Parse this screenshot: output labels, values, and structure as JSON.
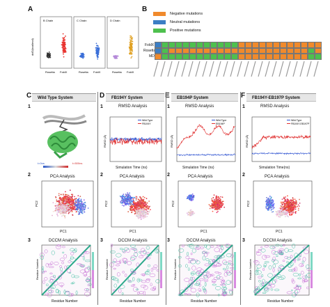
{
  "panel_letters": {
    "A": "A",
    "B": "B",
    "C": "C",
    "D": "D",
    "E": "E",
    "F": "F"
  },
  "panelA": {
    "ylabel": "ddG(kcal/mol)",
    "groups": [
      {
        "title": "B Chain",
        "xlabels": [
          "Rosetta",
          "FoldX"
        ]
      },
      {
        "title": "C Chain",
        "xlabels": [
          "Rosetta",
          "FoldX"
        ]
      },
      {
        "title": "D Chain",
        "xlabels": [
          "Rosetta",
          "FoldX"
        ]
      }
    ],
    "colors": {
      "rosetta_b": "#333333",
      "foldx_b": "#e8322e",
      "rosetta_c": "#3b6fd8",
      "foldx_c": "#3b6fd8",
      "rosetta_d": "#b58ad9",
      "foldx_d": "#e0a020"
    }
  },
  "panelB": {
    "legend": [
      {
        "label": "Negative mutations",
        "color": "#f08a2c"
      },
      {
        "label": "Neutral mutations",
        "color": "#3b7ec4"
      },
      {
        "label": "Positive mutations",
        "color": "#4ec04e"
      }
    ],
    "row_labels": [
      "FoldX",
      "Rosetta",
      "MD"
    ]
  },
  "sections": [
    {
      "key": "C",
      "title": "Wild Type System"
    },
    {
      "key": "D",
      "title": "FB194Y System"
    },
    {
      "key": "E",
      "title": "EB194P System"
    },
    {
      "key": "F",
      "title": "FB194Y-EB197P System"
    }
  ],
  "row1": {
    "num": "1",
    "wt_labels": {
      "start": "t=0ns",
      "end": "t=500ns"
    },
    "rmsd_title": "RMSD Analysis",
    "xlabel": "Simulation Time (ns)",
    "xlabel_f": "Simulation Time(ns)",
    "ylabel": "RMSD (Å)",
    "legend_d": [
      "Wild Type",
      "FB194Y"
    ],
    "legend_e": [
      "Wild Type",
      "EB194P"
    ],
    "legend_f": [
      "Wild Type",
      "FB194Y-EB197P"
    ]
  },
  "row2": {
    "num": "2",
    "title": "PCA Analysis",
    "xlabel": "PC1",
    "ylabel": "PC2"
  },
  "row3": {
    "num": "3",
    "title": "DCCM Analysis",
    "xlabel": "Residue Number",
    "ylabel": "Residue Number"
  }
}
